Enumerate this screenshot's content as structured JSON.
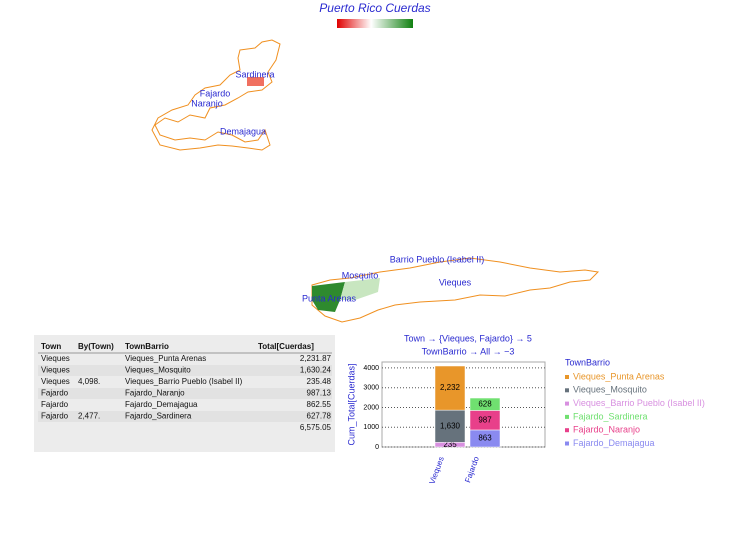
{
  "map": {
    "title": "Puerto Rico Cuerdas",
    "labels": [
      "Sardinera",
      "Fajardo",
      "Naranjo",
      "Demajagua",
      "Barrio Pueblo (Isabel II)",
      "Mosquito",
      "Vieques",
      "Punta Arenas"
    ]
  },
  "table": {
    "headers": [
      "Town",
      "By(Town)",
      "TownBarrio",
      "Total[Cuerdas]"
    ],
    "rows": [
      {
        "town": "Vieques",
        "barrio": "Vieques_Punta Arenas",
        "total": "2,231.87"
      },
      {
        "town": "Vieques",
        "barrio": "Vieques_Mosquito",
        "total": "1,630.24"
      },
      {
        "town": "Vieques",
        "by_town": "4,098.",
        "barrio": "Vieques_Barrio Pueblo (Isabel II)",
        "total": "235.48"
      },
      {
        "town": "Fajardo",
        "barrio": "Fajardo_Naranjo",
        "total": "987.13"
      },
      {
        "town": "Fajardo",
        "barrio": "Fajardo_Demajagua",
        "total": "862.55"
      },
      {
        "town": "Fajardo",
        "by_town": "2,477.",
        "barrio": "Fajardo_Sardinera",
        "total": "627.78"
      },
      {
        "total": "6,575.05"
      }
    ]
  },
  "chart_data": {
    "type": "bar",
    "stacked": true,
    "title": [
      "Town → {Vieques, Fajardo} → 5",
      "TownBarrio → All → −3"
    ],
    "ylabel": "Cum_Total[Cuerdas]",
    "legend_title": "TownBarrio",
    "categories": [
      "Vieques",
      "Fajardo"
    ],
    "ylim": [
      0,
      4300
    ],
    "yticks": [
      0,
      1000,
      2000,
      3000,
      4000
    ],
    "grid": true,
    "series": [
      {
        "name": "Vieques_Punta Arenas",
        "color": "#e8962a",
        "values": [
          2231.87,
          null
        ],
        "value_labels": [
          "2,232",
          null
        ]
      },
      {
        "name": "Vieques_Mosquito",
        "color": "#66727c",
        "values": [
          1630.24,
          null
        ],
        "value_labels": [
          "1,630",
          null
        ]
      },
      {
        "name": "Vieques_Barrio Pueblo (Isabel II)",
        "color": "#d890e0",
        "values": [
          235.48,
          null
        ],
        "value_labels": [
          "235",
          null
        ]
      },
      {
        "name": "Fajardo_Sardinera",
        "color": "#70e070",
        "values": [
          null,
          627.78
        ],
        "value_labels": [
          null,
          "628"
        ]
      },
      {
        "name": "Fajardo_Naranjo",
        "color": "#e8408a",
        "values": [
          null,
          987.13
        ],
        "value_labels": [
          null,
          "987"
        ]
      },
      {
        "name": "Fajardo_Demajagua",
        "color": "#8a8af0",
        "values": [
          null,
          862.55
        ],
        "value_labels": [
          null,
          "863"
        ]
      }
    ]
  }
}
